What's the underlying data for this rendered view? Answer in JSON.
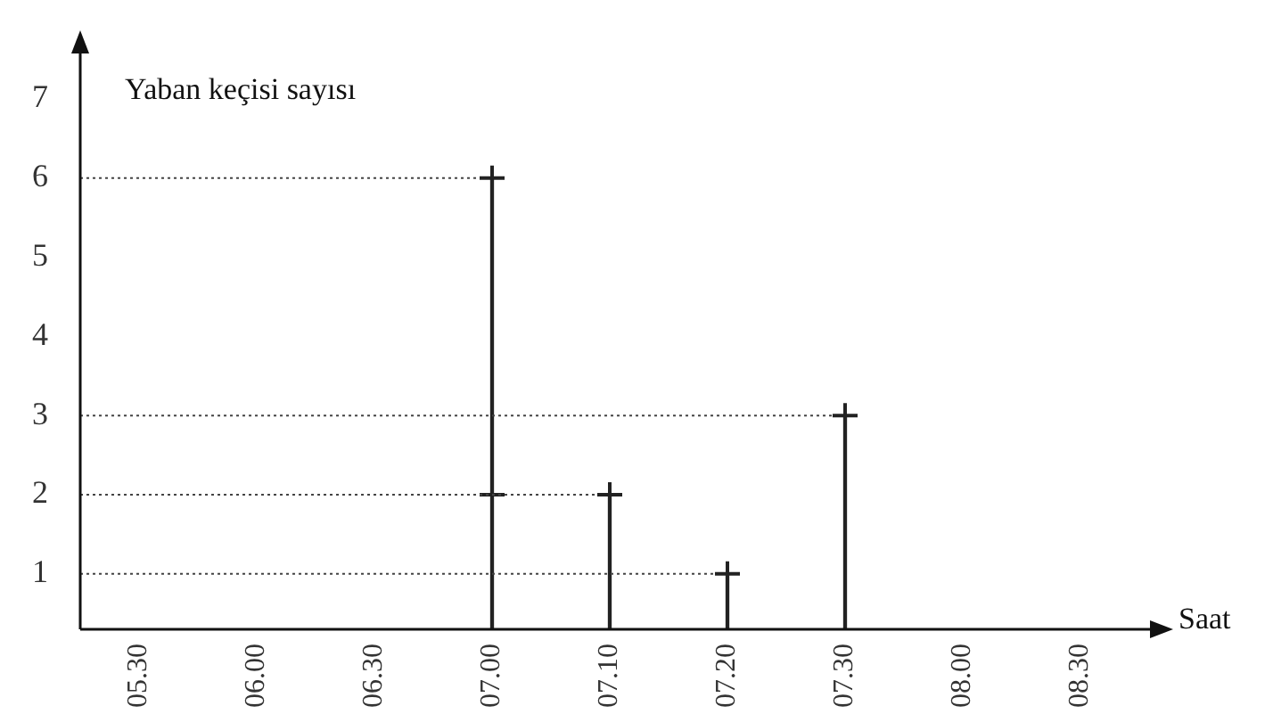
{
  "chart_data": {
    "type": "bar",
    "ylabel": "Yaban keçisi sayısı",
    "xlabel": "Saat",
    "categories": [
      "05.30",
      "06.00",
      "06.30",
      "07.00",
      "07.10",
      "07.20",
      "07.30",
      "08.00",
      "08.30"
    ],
    "ylim": [
      0.3,
      7.6
    ],
    "yticks": [
      1,
      2,
      3,
      4,
      5,
      6,
      7
    ],
    "grid": false,
    "ref_lines": [
      {
        "axis": "y",
        "value": 6,
        "color": "#444444",
        "line_style": "dotted"
      },
      {
        "axis": "y",
        "value": 3,
        "color": "#444444",
        "line_style": "dotted"
      },
      {
        "axis": "y",
        "value": 2,
        "color": "#444444",
        "line_style": "dotted"
      },
      {
        "axis": "y",
        "value": 1,
        "color": "#444444",
        "line_style": "dotted"
      }
    ],
    "legend": false,
    "marker": "cross",
    "series": [
      {
        "color": "#222222",
        "values": [
          null,
          null,
          null,
          6,
          2,
          1,
          3,
          null,
          null
        ]
      },
      {
        "type": "scatter",
        "color": "#222222",
        "values": [
          null,
          null,
          null,
          6,
          2,
          1,
          3,
          null,
          null
        ]
      },
      {
        "type": "scatter",
        "color": "#222222",
        "values": [
          null,
          null,
          null,
          2,
          null,
          null,
          null,
          null,
          null
        ]
      }
    ]
  }
}
